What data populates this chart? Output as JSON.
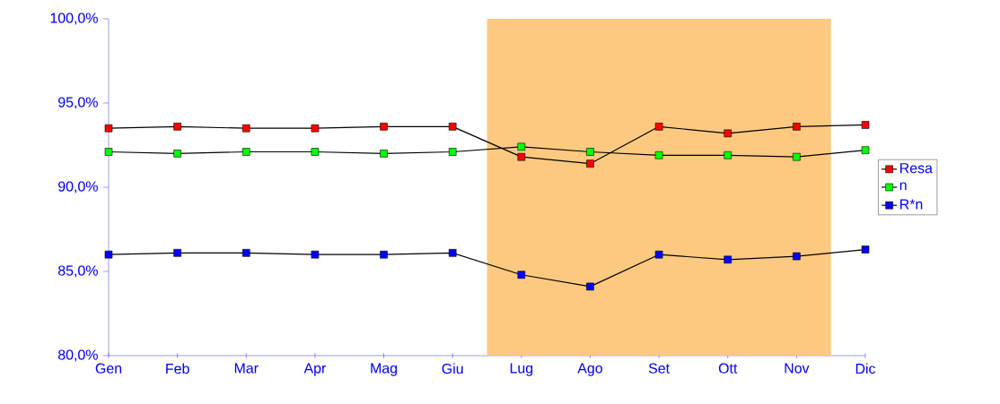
{
  "chart_data": {
    "type": "line",
    "categories": [
      "Gen",
      "Feb",
      "Mar",
      "Apr",
      "Mag",
      "Giu",
      "Lug",
      "Ago",
      "Set",
      "Ott",
      "Nov",
      "Dic"
    ],
    "series": [
      {
        "name": "Resa",
        "color": "#ff0000",
        "values": [
          93.5,
          93.6,
          93.5,
          93.5,
          93.6,
          93.6,
          91.8,
          91.4,
          93.6,
          93.2,
          93.6,
          93.7
        ]
      },
      {
        "name": "n",
        "color": "#00ff00",
        "values": [
          92.1,
          92.0,
          92.1,
          92.1,
          92.0,
          92.1,
          92.4,
          92.1,
          91.9,
          91.9,
          91.8,
          92.2
        ]
      },
      {
        "name": "R*n",
        "color": "#0000ff",
        "values": [
          86.0,
          86.1,
          86.1,
          86.0,
          86.0,
          86.1,
          84.8,
          84.1,
          86.0,
          85.7,
          85.9,
          86.3
        ]
      }
    ],
    "ylim": [
      80,
      100
    ],
    "yticks": [
      {
        "value": 80,
        "label": "80,0%"
      },
      {
        "value": 85,
        "label": "85,0%"
      },
      {
        "value": 90,
        "label": "90,0%"
      },
      {
        "value": 95,
        "label": "95,0%"
      },
      {
        "value": 100,
        "label": "100,0%"
      }
    ],
    "bands": [
      {
        "axis": "x",
        "from": "Lug",
        "to": "Nov",
        "color": "#fdc980"
      }
    ],
    "grid": false,
    "legend": "right",
    "marker": "square",
    "line_style": "solid"
  }
}
